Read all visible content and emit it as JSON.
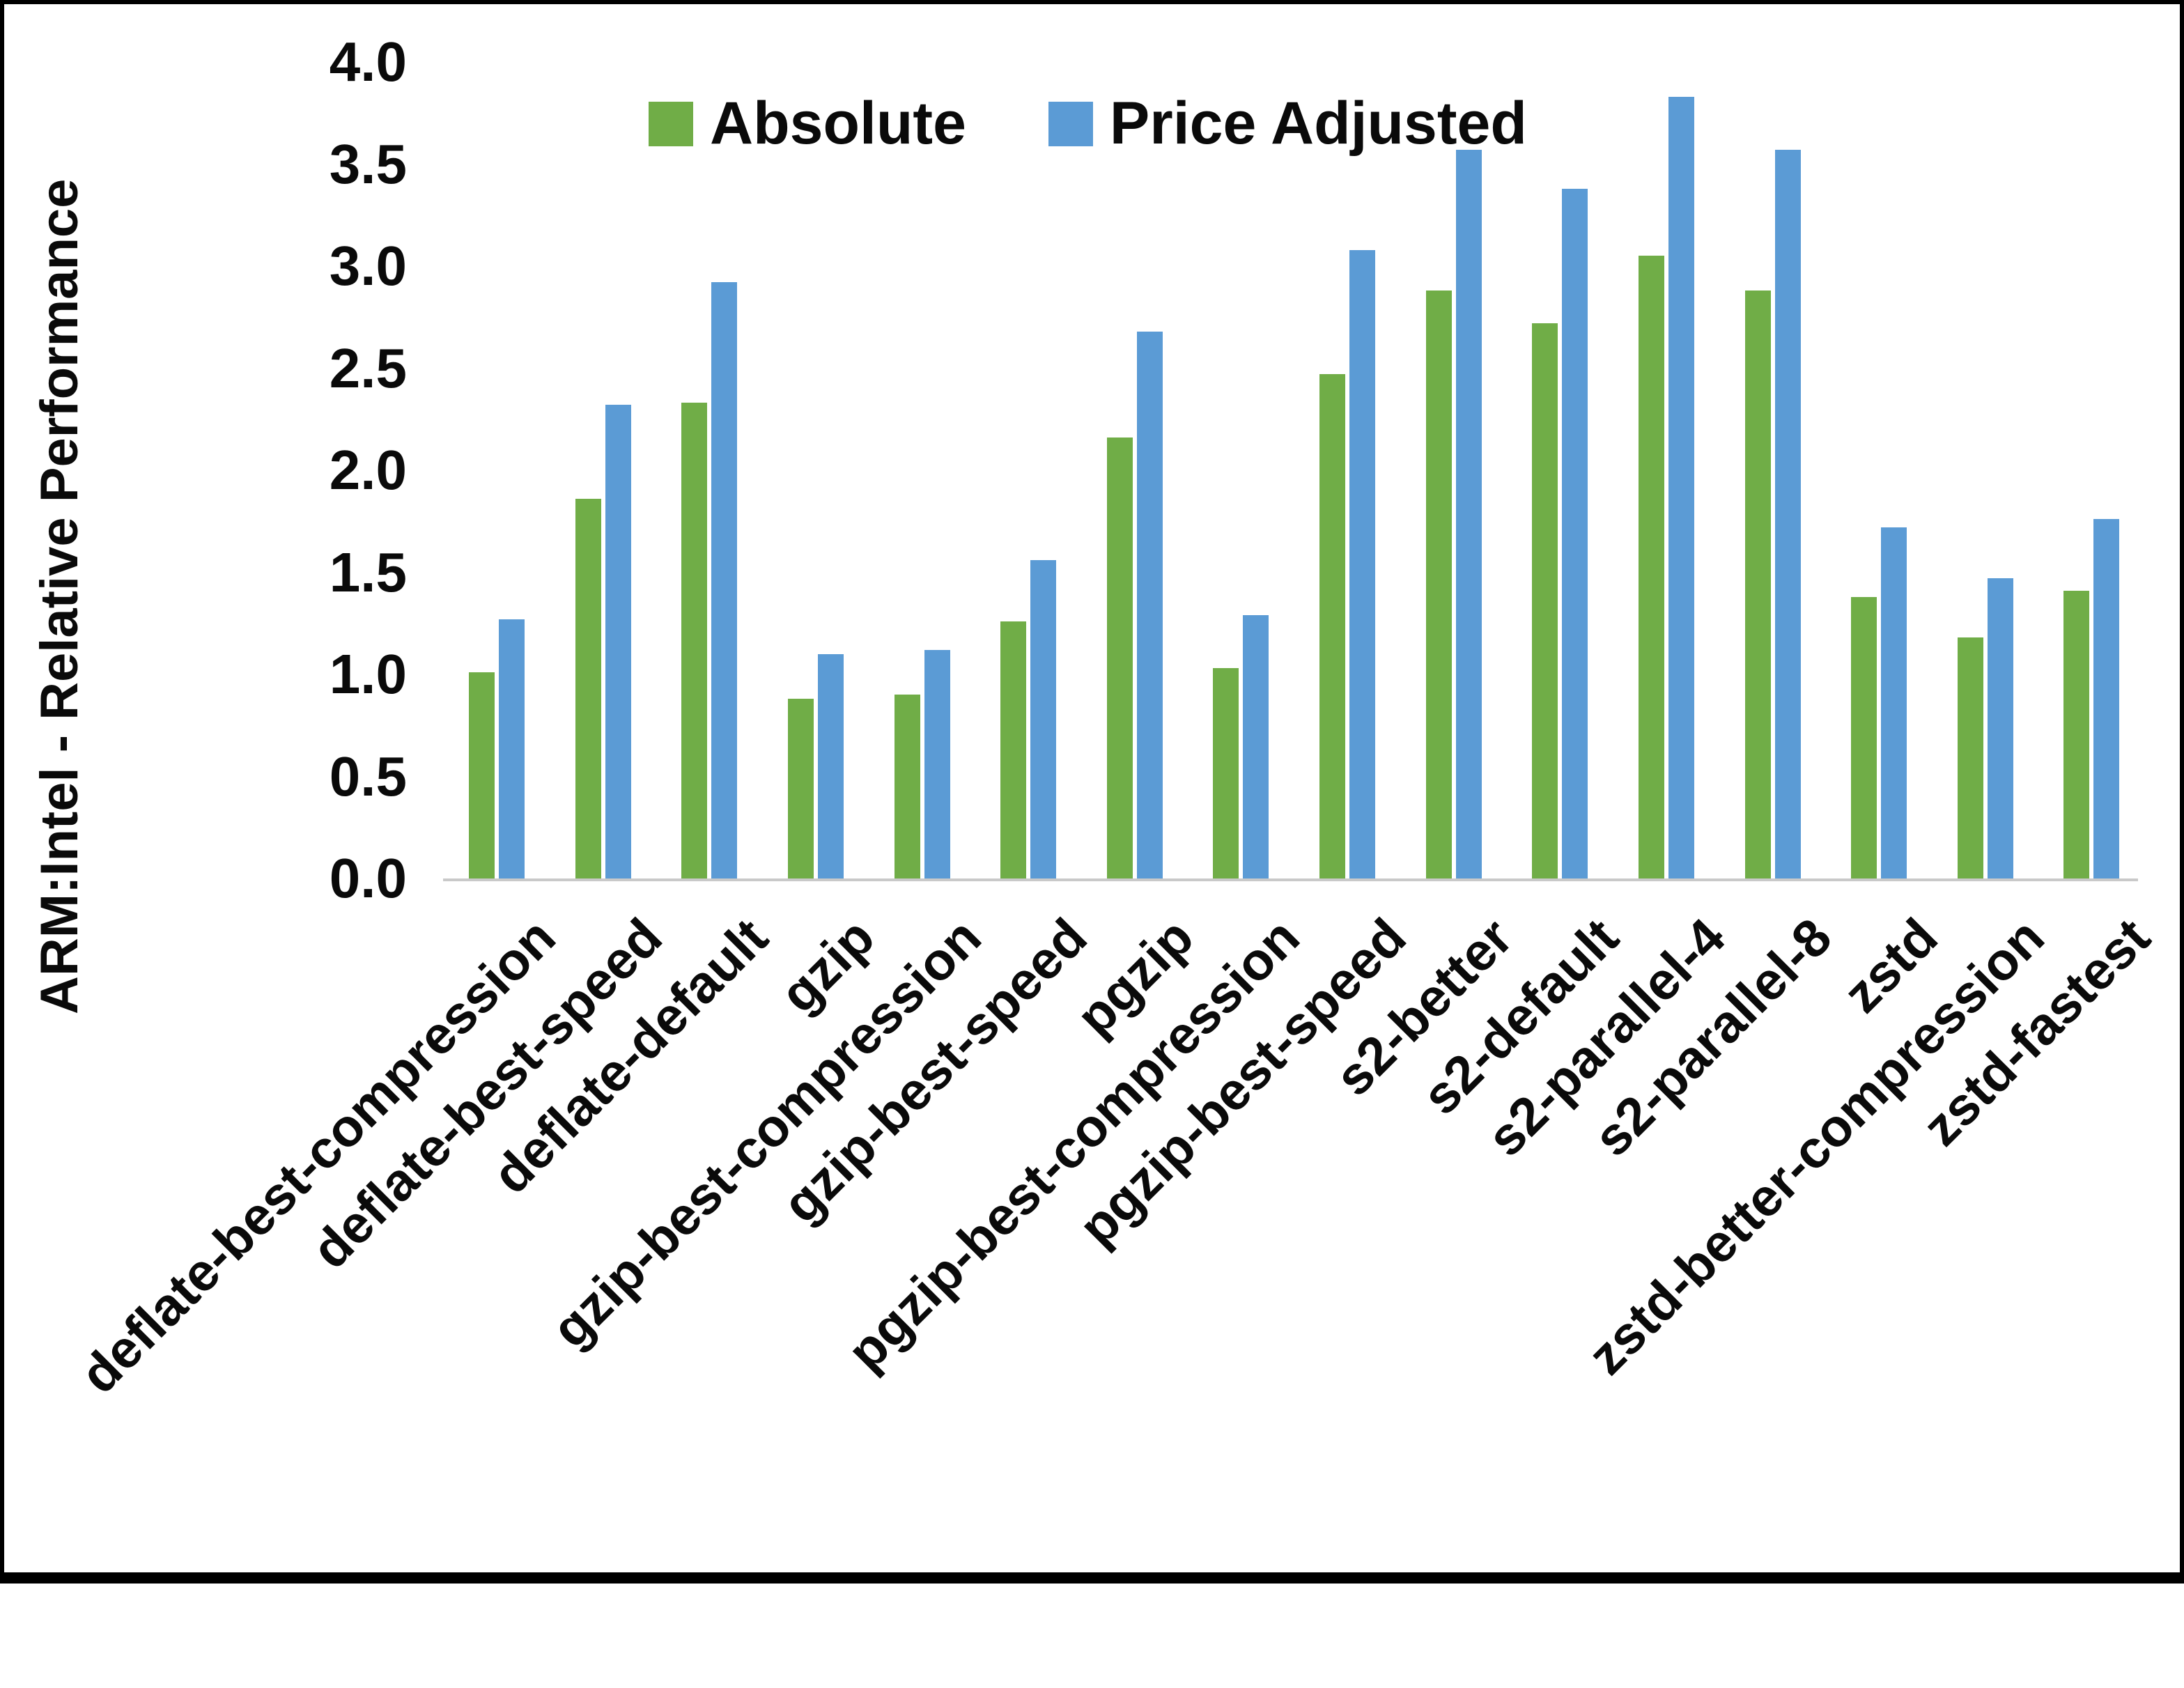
{
  "colors": {
    "absolute": "#70ad47",
    "price_adjusted": "#5b9bd5",
    "axis_line": "#c9c9c9",
    "text": "#0a0a0a"
  },
  "legend": {
    "absolute_label": "Absolute",
    "price_adjusted_label": "Price Adjusted"
  },
  "chart_data": {
    "type": "bar",
    "title": "",
    "xlabel": "",
    "ylabel": "ARM:Intel - Relative Performance",
    "ylim": [
      0.0,
      4.0
    ],
    "ytick_step": 0.5,
    "ytick_labels": [
      "0.0",
      "0.5",
      "1.0",
      "1.5",
      "2.0",
      "2.5",
      "3.0",
      "3.5",
      "4.0"
    ],
    "grid": false,
    "legend_position": "top-center",
    "categories": [
      "deflate-best-compression",
      "deflate-best-speed",
      "deflate-default",
      "gzip",
      "gzip-best-compression",
      "gzip-best-speed",
      "pgzip",
      "pgzip-best-compression",
      "pgzip-best-speed",
      "s2-better",
      "s2-default",
      "s2-parallel-4",
      "s2-parallel-8",
      "zstd",
      "zstd-better-compression",
      "zstd-fastest"
    ],
    "series": [
      {
        "name": "Absolute",
        "color": "#70ad47",
        "values": [
          1.01,
          1.86,
          2.33,
          0.88,
          0.9,
          1.26,
          2.16,
          1.03,
          2.47,
          2.88,
          2.72,
          3.05,
          2.88,
          1.38,
          1.18,
          1.41
        ]
      },
      {
        "name": "Price Adjusted",
        "color": "#5b9bd5",
        "values": [
          1.27,
          2.32,
          2.92,
          1.1,
          1.12,
          1.56,
          2.68,
          1.29,
          3.08,
          3.57,
          3.38,
          3.83,
          3.57,
          1.72,
          1.47,
          1.76
        ]
      }
    ]
  }
}
